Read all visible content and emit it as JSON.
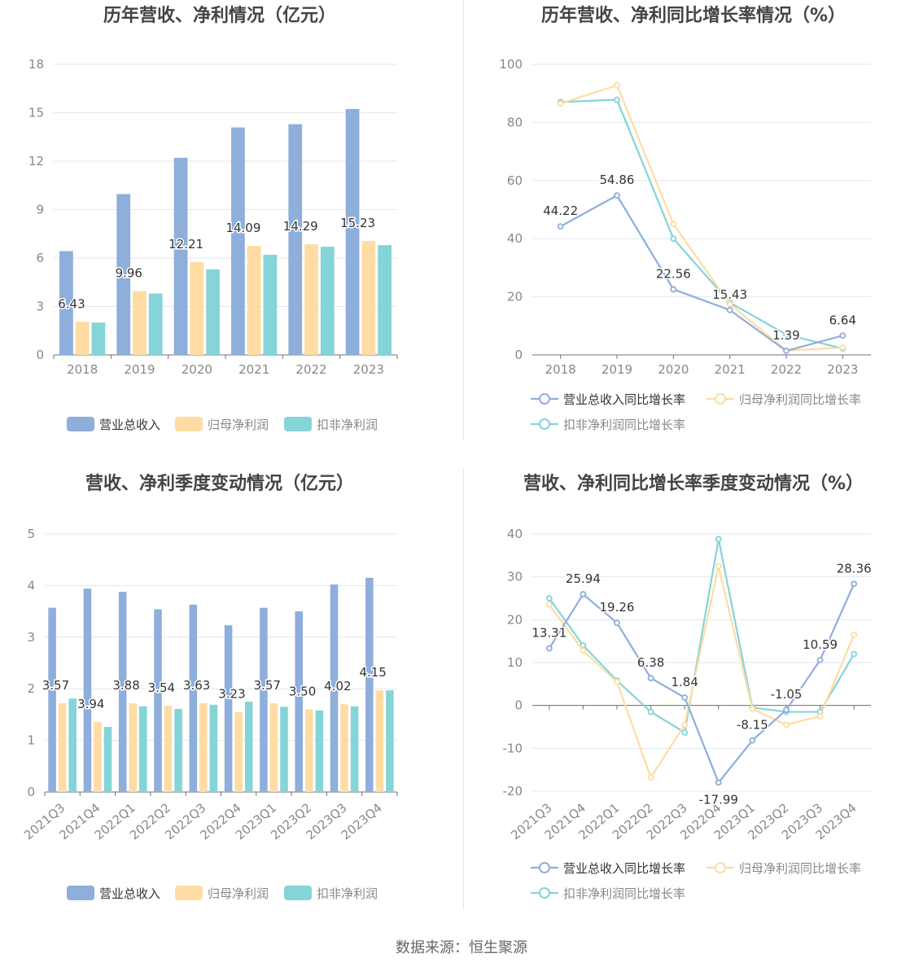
{
  "colors": {
    "revenue": "#8eaedb",
    "net_profit": "#fedca4",
    "deducted_profit": "#84d4d8",
    "axis_text": "#888888",
    "grid": "#e3e6ee",
    "title": "#444444"
  },
  "source": "数据来源：恒生聚源",
  "chart_data": [
    {
      "id": "annual_amount",
      "type": "bar",
      "title": "历年营收、净利情况（亿元）",
      "categories": [
        "2018",
        "2019",
        "2020",
        "2021",
        "2022",
        "2023"
      ],
      "ylim": [
        0,
        18
      ],
      "yticks": [
        0,
        3,
        6,
        9,
        12,
        15,
        18
      ],
      "grid": true,
      "legend_position": "bottom",
      "series": [
        {
          "name": "营业总收入",
          "color": "#8eaedb",
          "values": [
            6.43,
            9.96,
            12.21,
            14.09,
            14.29,
            15.23
          ],
          "labels": [
            "6.43",
            "9.96",
            "12.21",
            "14.09",
            "14.29",
            "15.23"
          ]
        },
        {
          "name": "归母净利润",
          "color": "#fedca4",
          "values": [
            2.05,
            3.95,
            5.75,
            6.75,
            6.85,
            7.05
          ]
        },
        {
          "name": "扣非净利润",
          "color": "#84d4d8",
          "values": [
            2.0,
            3.8,
            5.3,
            6.2,
            6.7,
            6.8
          ]
        }
      ]
    },
    {
      "id": "annual_growth",
      "type": "line",
      "title": "历年营收、净利同比增长率情况（%）",
      "categories": [
        "2018",
        "2019",
        "2020",
        "2021",
        "2022",
        "2023"
      ],
      "ylim": [
        0,
        100
      ],
      "yticks": [
        0,
        20,
        40,
        60,
        80,
        100
      ],
      "grid": true,
      "legend_position": "bottom",
      "series": [
        {
          "name": "营业总收入同比增长率",
          "color": "#8eaedb",
          "values": [
            44.22,
            54.86,
            22.56,
            15.43,
            1.39,
            6.64
          ],
          "labels": [
            "44.22",
            "54.86",
            "22.56",
            "15.43",
            "1.39",
            "6.64"
          ]
        },
        {
          "name": "归母净利润同比增长率",
          "color": "#fedca4",
          "values": [
            86.5,
            92.8,
            45.0,
            17.5,
            1.5,
            2.5
          ]
        },
        {
          "name": "扣非净利润同比增长率",
          "color": "#84d4d8",
          "values": [
            87.0,
            87.8,
            40.0,
            18.0,
            7.0,
            2.2
          ]
        }
      ]
    },
    {
      "id": "quarterly_amount",
      "type": "bar",
      "title": "营收、净利季度变动情况（亿元）",
      "categories": [
        "2021Q3",
        "2021Q4",
        "2022Q1",
        "2022Q2",
        "2022Q3",
        "2022Q4",
        "2023Q1",
        "2023Q2",
        "2023Q3",
        "2023Q4"
      ],
      "ylim": [
        0,
        5
      ],
      "yticks": [
        0,
        1,
        2,
        3,
        4,
        5
      ],
      "grid": true,
      "legend_position": "bottom",
      "series": [
        {
          "name": "营业总收入",
          "color": "#8eaedb",
          "values": [
            3.57,
            3.94,
            3.88,
            3.54,
            3.63,
            3.23,
            3.57,
            3.5,
            4.02,
            4.15
          ],
          "labels": [
            "3.57",
            "3.94",
            "3.88",
            "3.54",
            "3.63",
            "3.23",
            "3.57",
            "3.50",
            "4.02",
            "4.15"
          ]
        },
        {
          "name": "归母净利润",
          "color": "#fedca4",
          "values": [
            1.72,
            1.36,
            1.72,
            1.67,
            1.72,
            1.55,
            1.72,
            1.6,
            1.7,
            1.97
          ]
        },
        {
          "name": "扣非净利润",
          "color": "#84d4d8",
          "values": [
            1.81,
            1.26,
            1.66,
            1.61,
            1.69,
            1.75,
            1.65,
            1.58,
            1.66,
            1.97
          ]
        }
      ]
    },
    {
      "id": "quarterly_growth",
      "type": "line",
      "title": "营收、净利同比增长率季度变动情况（%）",
      "categories": [
        "2021Q3",
        "2021Q4",
        "2022Q1",
        "2022Q2",
        "2022Q3",
        "2022Q4",
        "2023Q1",
        "2023Q2",
        "2023Q3",
        "2023Q4"
      ],
      "ylim": [
        -20,
        40
      ],
      "yticks": [
        -20,
        -10,
        0,
        10,
        20,
        30,
        40
      ],
      "grid": true,
      "legend_position": "bottom",
      "series": [
        {
          "name": "营业总收入同比增长率",
          "color": "#8eaedb",
          "values": [
            13.31,
            25.94,
            19.26,
            6.38,
            1.84,
            -17.99,
            -8.15,
            -1.05,
            10.59,
            28.36
          ],
          "labels": [
            "13.31",
            "25.94",
            "19.26",
            "6.38",
            "1.84",
            "-17.99",
            "-8.15",
            "-1.05",
            "10.59",
            "28.36"
          ]
        },
        {
          "name": "归母净利润同比增长率",
          "color": "#fedca4",
          "values": [
            23.5,
            12.8,
            5.5,
            -16.8,
            -4.5,
            32.5,
            -0.8,
            -4.5,
            -2.5,
            16.5
          ]
        },
        {
          "name": "扣非净利润同比增长率",
          "color": "#84d4d8",
          "values": [
            25.0,
            14.0,
            5.8,
            -1.5,
            -6.3,
            38.8,
            -0.5,
            -1.5,
            -1.5,
            12.0
          ]
        }
      ]
    }
  ]
}
